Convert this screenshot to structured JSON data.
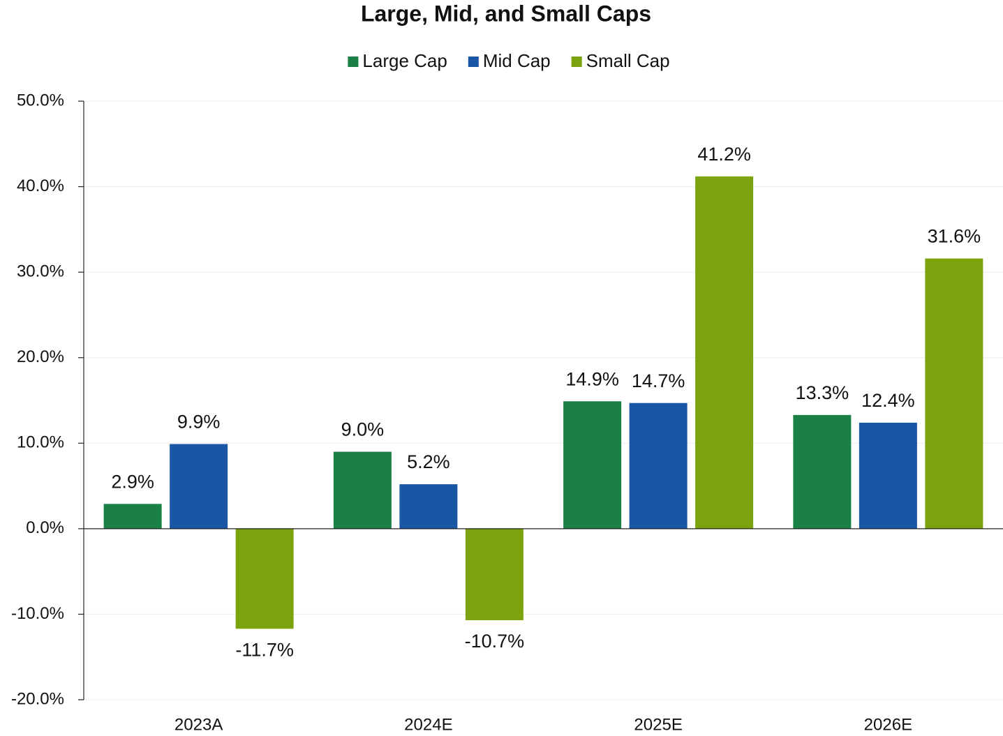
{
  "chart_data": {
    "type": "bar",
    "title": "Large, Mid, and Small Caps",
    "categories": [
      "2023A",
      "2024E",
      "2025E",
      "2026E"
    ],
    "series": [
      {
        "name": "Large Cap",
        "color": "#1a8045",
        "values": [
          2.9,
          9.0,
          14.9,
          13.3
        ],
        "value_labels": [
          "2.9%",
          "9.0%",
          "14.9%",
          "13.3%"
        ]
      },
      {
        "name": "Mid Cap",
        "color": "#1a56a6",
        "values": [
          9.9,
          5.2,
          14.7,
          12.4
        ],
        "value_labels": [
          "9.9%",
          "5.2%",
          "14.7%",
          "12.4%"
        ]
      },
      {
        "name": "Small Cap",
        "color": "#7aa30e",
        "values": [
          -11.7,
          -10.7,
          41.2,
          31.6
        ],
        "value_labels": [
          "-11.7%",
          "-10.7%",
          "41.2%",
          "31.6%"
        ]
      }
    ],
    "ylim": [
      -20,
      50
    ],
    "yticks": [
      {
        "value": -20,
        "label": "-20.0%"
      },
      {
        "value": -10,
        "label": "-10.0%"
      },
      {
        "value": 0,
        "label": "0.0%"
      },
      {
        "value": 10,
        "label": "10.0%"
      },
      {
        "value": 20,
        "label": "20.0%"
      },
      {
        "value": 30,
        "label": "30.0%"
      },
      {
        "value": 40,
        "label": "40.0%"
      },
      {
        "value": 50,
        "label": "50.0%"
      }
    ],
    "grid": true,
    "legend": "top"
  }
}
